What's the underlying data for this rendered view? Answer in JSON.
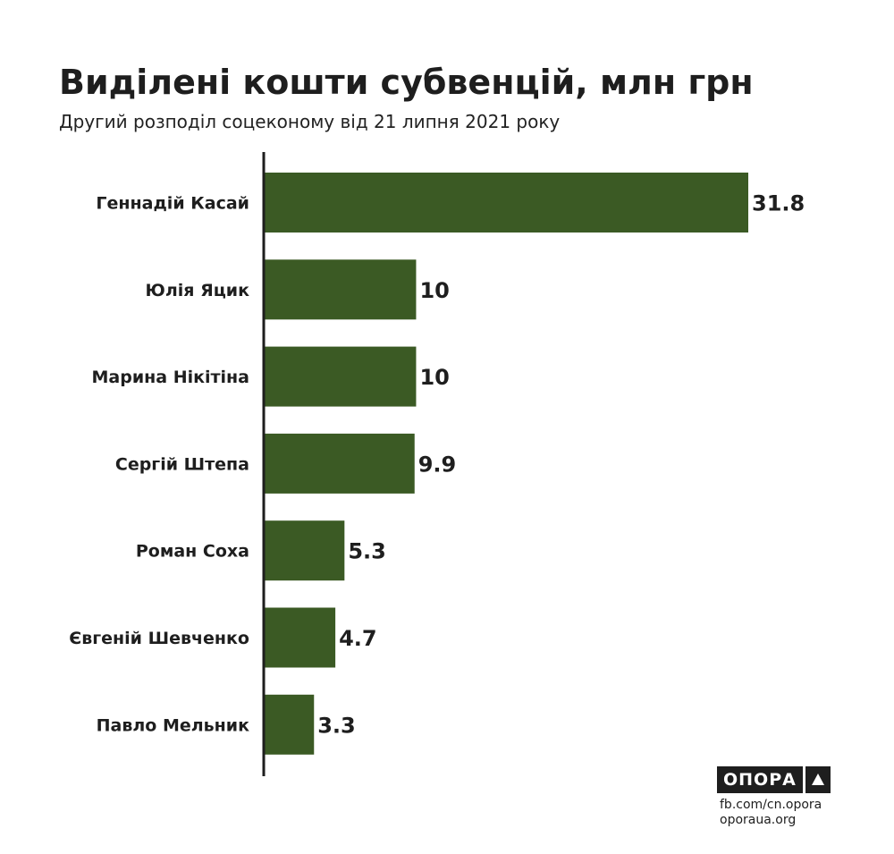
{
  "title": "Виділені кошти субвенцій, млн грн",
  "subtitle": "Другий розподіл соцекономy від 21 липня 2021 року",
  "colors": {
    "bar": "#3b5a24",
    "axis": "#1e1e1e",
    "text": "#1e1e1e"
  },
  "logo": {
    "text": "ОПОРА",
    "icon": "triangle-up-icon"
  },
  "links": {
    "fb": "fb.com/cn.opora",
    "site": "oporaua.org"
  },
  "chart_data": {
    "type": "bar",
    "orientation": "horizontal",
    "categories": [
      "Геннадій Касай",
      "Юлія Яцик",
      "Марина Нікітіна",
      "Сергій Штепа",
      "Роман Соха",
      "Євгеній Шевченко",
      "Павло Мельник"
    ],
    "values": [
      31.8,
      10,
      10,
      9.9,
      5.3,
      4.7,
      3.3
    ],
    "value_labels": [
      "31.8",
      "10",
      "10",
      "9.9",
      "5.3",
      "4.7",
      "3.3"
    ],
    "title": "Виділені кошти субвенцій, млн грн",
    "subtitle": "Другий розподіл соцекономy від 21 липня 2021 року",
    "xlim": [
      0,
      31.8
    ],
    "grid": false,
    "legend": "none"
  }
}
